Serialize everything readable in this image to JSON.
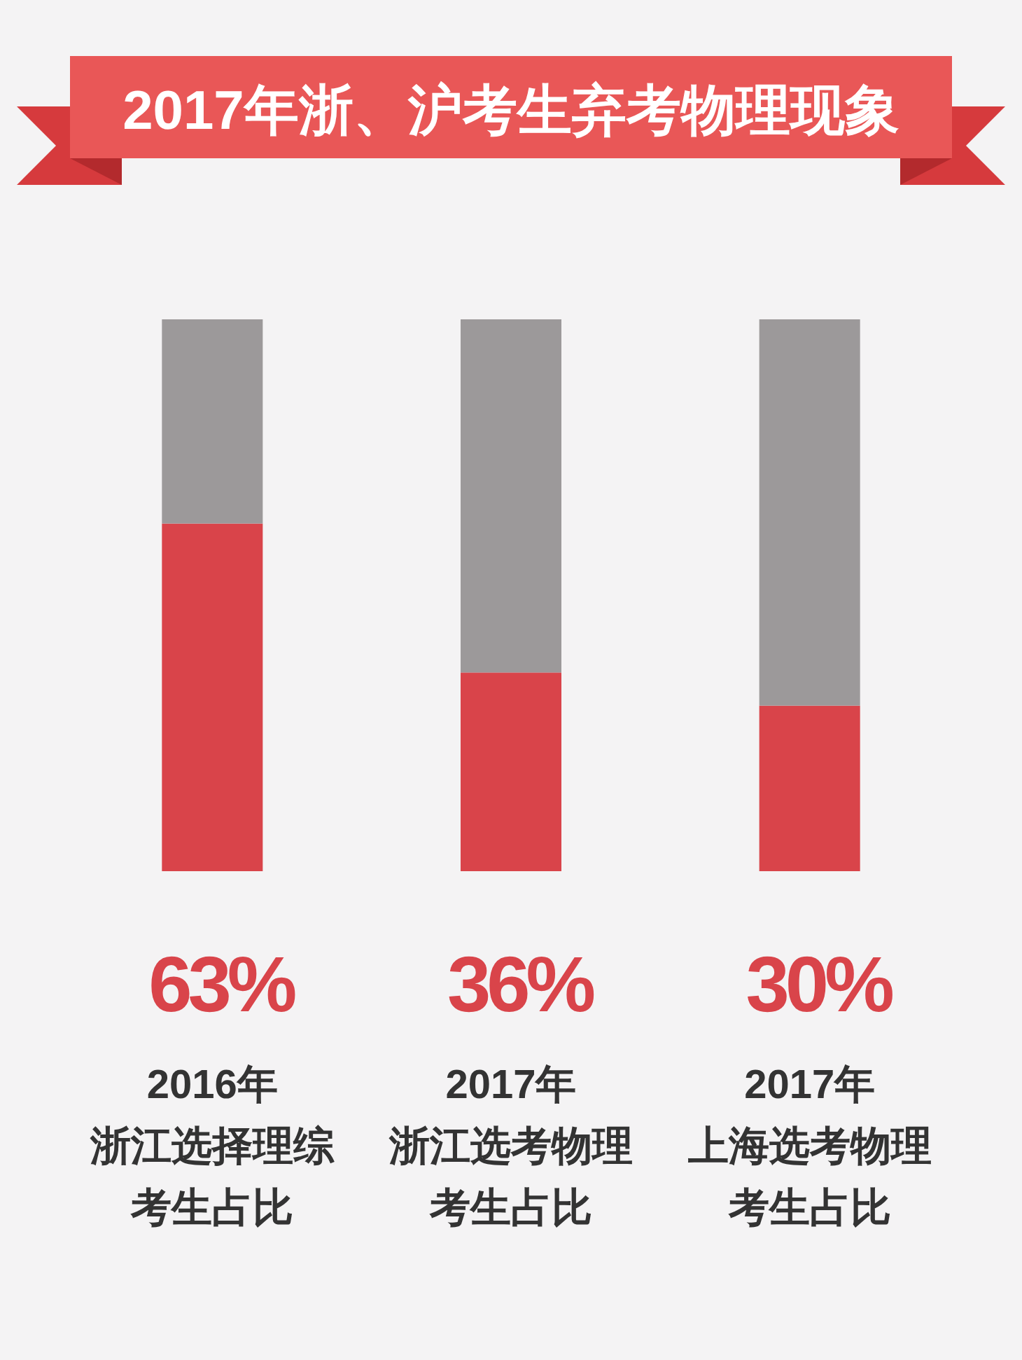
{
  "chart_data": {
    "type": "bar",
    "title": "2017年浙、沪考生弃考物理现象",
    "categories": [
      "2016年浙江选择理综考生占比",
      "2017年浙江选考物理考生占比",
      "2017年上海选考物理考生占比"
    ],
    "stacked": true,
    "series": [
      {
        "color": "#d9444a",
        "values": [
          63,
          36,
          30
        ],
        "value_labels": [
          "63%",
          "36%",
          "30%"
        ]
      },
      {
        "color": "#9c999a",
        "values": [
          37,
          64,
          70
        ]
      }
    ]
  }
}
